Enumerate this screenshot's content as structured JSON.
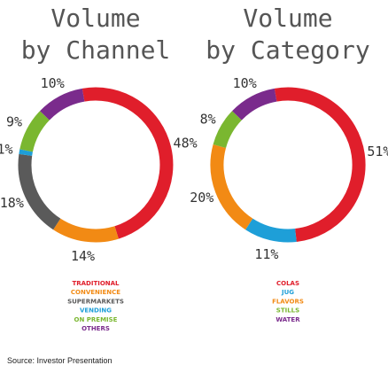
{
  "chart_data": [
    {
      "type": "pie",
      "title_line1": "Volume",
      "title_line2": "by Channel",
      "slices": [
        {
          "name": "TRADITIONAL",
          "value": 48,
          "label": "48%",
          "color": "#e01e2b"
        },
        {
          "name": "CONVENIENCE",
          "value": 14,
          "label": "14%",
          "color": "#f28a14"
        },
        {
          "name": "SUPERMARKETS",
          "value": 18,
          "label": "18%",
          "color": "#5a5a5a"
        },
        {
          "name": "VENDING",
          "value": 1,
          "label": "1%",
          "color": "#1e9fd8"
        },
        {
          "name": "ON PREMISE",
          "value": 9,
          "label": "9%",
          "color": "#7ab730"
        },
        {
          "name": "OTHERS",
          "value": 10,
          "label": "10%",
          "color": "#7a2b8c"
        }
      ]
    },
    {
      "type": "pie",
      "title_line1": "Volume",
      "title_line2": "by Category",
      "slices": [
        {
          "name": "COLAS",
          "value": 51,
          "label": "51%",
          "color": "#e01e2b"
        },
        {
          "name": "JUG",
          "value": 11,
          "label": "11%",
          "color": "#1e9fd8"
        },
        {
          "name": "FLAVORS",
          "value": 20,
          "label": "20%",
          "color": "#f28a14"
        },
        {
          "name": "STILLS",
          "value": 8,
          "label": "8%",
          "color": "#7ab730"
        },
        {
          "name": "WATER",
          "value": 10,
          "label": "10%",
          "color": "#7a2b8c"
        }
      ]
    }
  ],
  "source": "Source: Investor Presentation"
}
